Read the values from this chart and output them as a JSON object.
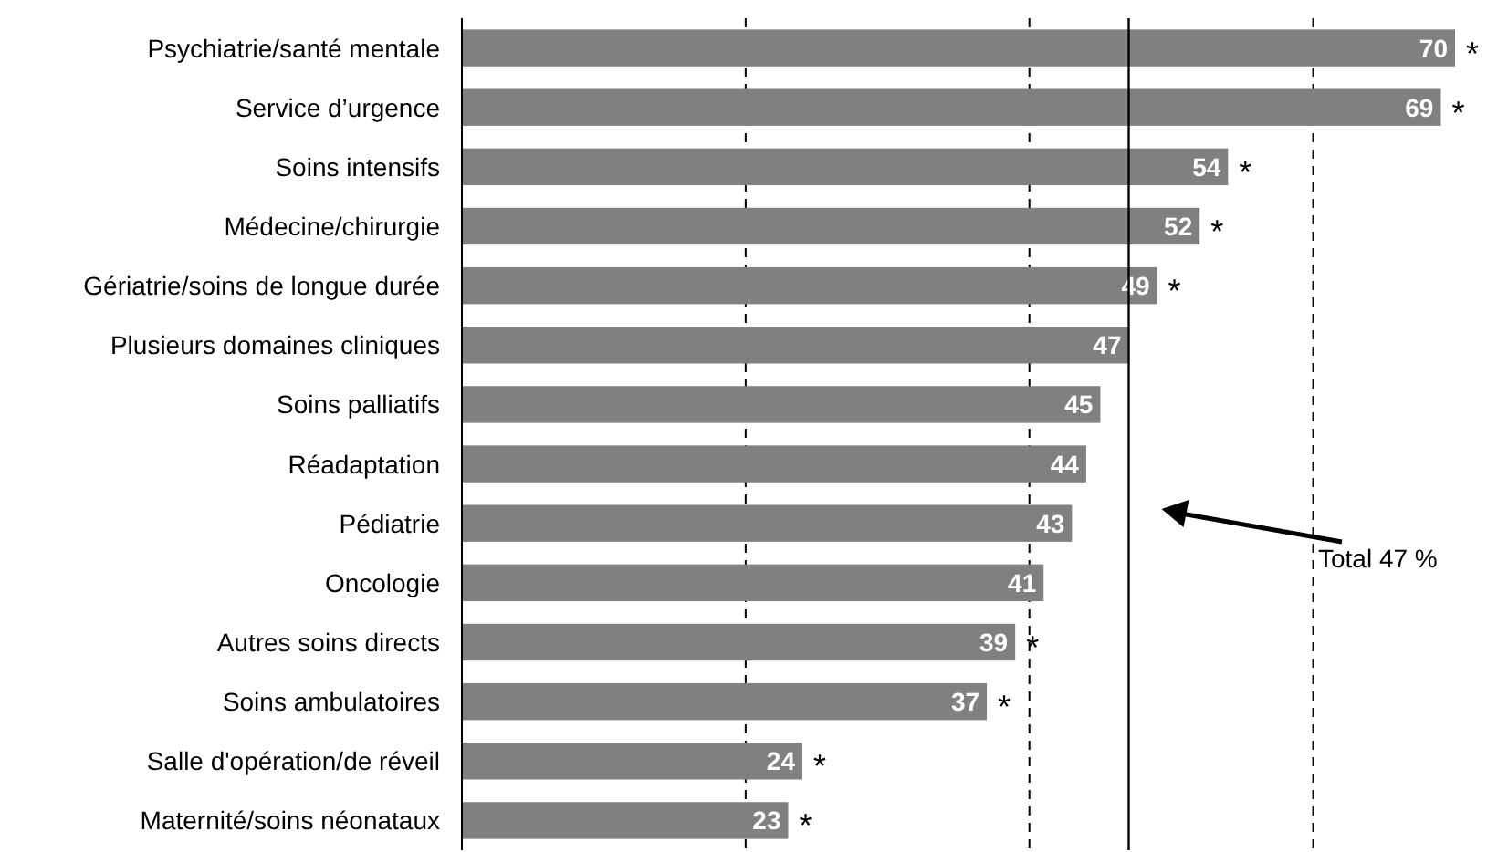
{
  "chart_data": {
    "type": "bar",
    "orientation": "horizontal",
    "categories": [
      "Psychiatrie/santé mentale",
      "Service d’urgence",
      "Soins intensifs",
      "Médecine/chirurgie",
      "Gériatrie/soins de longue durée",
      "Plusieurs domaines cliniques",
      "Soins palliatifs",
      "Réadaptation",
      "Pédiatrie",
      "Oncologie",
      "Autres soins directs",
      "Soins ambulatoires",
      "Salle d'opération/de réveil",
      "Maternité/soins néonataux"
    ],
    "values": [
      70,
      69,
      54,
      52,
      49,
      47,
      45,
      44,
      43,
      41,
      39,
      37,
      24,
      23
    ],
    "color": "#808080",
    "data_labels": true,
    "xticks": [
      {
        "value": 20,
        "label": null
      },
      {
        "value": 40,
        "label": null
      },
      {
        "value": 60,
        "label": null
      }
    ],
    "grid": "x",
    "tick_labels": "y",
    "ref_lines": [
      {
        "axis": "x",
        "value": 47,
        "label": "Total 47 %",
        "color": "#000000"
      }
    ],
    "annotations": [
      {
        "text": "*",
        "x": 70,
        "y": "Psychiatrie/santé mentale"
      },
      {
        "text": "*",
        "x": 69,
        "y": "Service d’urgence"
      },
      {
        "text": "*",
        "x": 54,
        "y": "Soins intensifs"
      },
      {
        "text": "*",
        "x": 52,
        "y": "Médecine/chirurgie"
      },
      {
        "text": "*",
        "x": 49,
        "y": "Gériatrie/soins de longue durée"
      },
      {
        "text": "*",
        "x": 39,
        "y": "Autres soins directs"
      },
      {
        "text": "*",
        "x": 37,
        "y": "Soins ambulatoires"
      },
      {
        "text": "*",
        "x": 24,
        "y": "Salle d'opération/de réveil"
      },
      {
        "text": "*",
        "x": 23,
        "y": "Maternité/soins néonataux"
      }
    ]
  }
}
